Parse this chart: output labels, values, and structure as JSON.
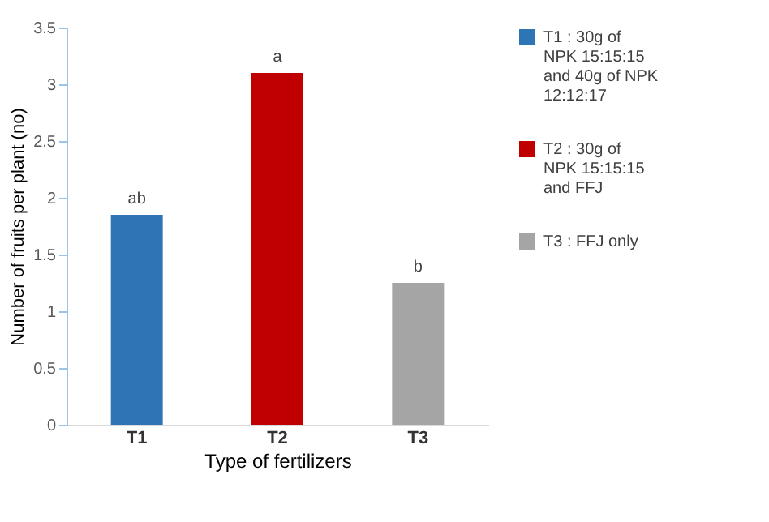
{
  "chart_data": {
    "type": "bar",
    "xlabel": "Type of fertilizers",
    "ylabel": "Number of fruits  per plant (no)",
    "categories": [
      "T1",
      "T2",
      "T3"
    ],
    "series": [
      {
        "name": "T1  : 30g of NPK 15:15:15 and 40g of NPK 12:12:17",
        "color": "#2e75b6",
        "values": [
          1.85,
          null,
          null
        ],
        "value_labels": [
          "ab",
          null,
          null
        ]
      },
      {
        "name": "T2  : 30g of NPK 15:15:15 and FFJ",
        "color": "#c00000",
        "values": [
          null,
          3.1,
          null
        ],
        "value_labels": [
          null,
          "a",
          null
        ]
      },
      {
        "name": "T3  : FFJ only",
        "color": "#a5a5a5",
        "values": [
          null,
          null,
          1.25
        ],
        "value_labels": [
          null,
          null,
          "b"
        ]
      }
    ],
    "ylim": [
      0,
      3.5
    ],
    "yticks": [
      0,
      0.5,
      1,
      1.5,
      2,
      2.5,
      3,
      3.5
    ],
    "grid": false,
    "legend": "right"
  }
}
